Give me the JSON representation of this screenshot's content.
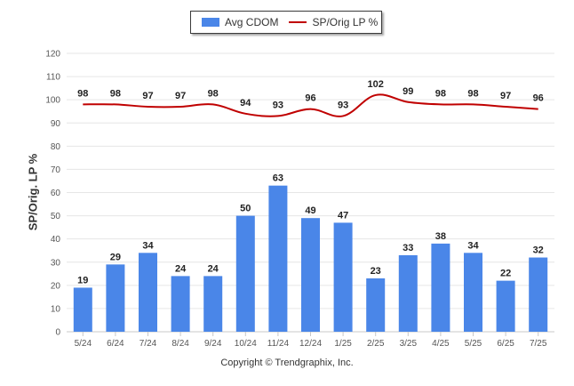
{
  "legend": {
    "bar_label": "Avg CDOM",
    "line_label": "SP/Orig LP %"
  },
  "copyright": "Copyright © Trendgraphix, Inc.",
  "colors": {
    "bar": "#4a86e8",
    "line": "#c00000",
    "grid": "#e6e6e6",
    "axis_text": "#555555"
  },
  "chart_data": {
    "type": "bar",
    "categories": [
      "5/24",
      "6/24",
      "7/24",
      "8/24",
      "9/24",
      "10/24",
      "11/24",
      "12/24",
      "1/25",
      "2/25",
      "3/25",
      "4/25",
      "5/25",
      "6/25",
      "7/25"
    ],
    "series": [
      {
        "name": "Avg CDOM",
        "type": "bar",
        "values": [
          19,
          29,
          34,
          24,
          24,
          50,
          63,
          49,
          47,
          23,
          33,
          38,
          34,
          22,
          32
        ]
      },
      {
        "name": "SP/Orig LP %",
        "type": "line",
        "values": [
          98,
          98,
          97,
          97,
          98,
          94,
          93,
          96,
          93,
          102,
          99,
          98,
          98,
          97,
          96
        ]
      }
    ],
    "ylabel": "SP/Orig. LP %",
    "ylim": [
      0,
      120
    ],
    "yticks": [
      0,
      10,
      20,
      30,
      40,
      50,
      60,
      70,
      80,
      90,
      100,
      110,
      120
    ],
    "grid": true,
    "legend_position": "top-center"
  }
}
